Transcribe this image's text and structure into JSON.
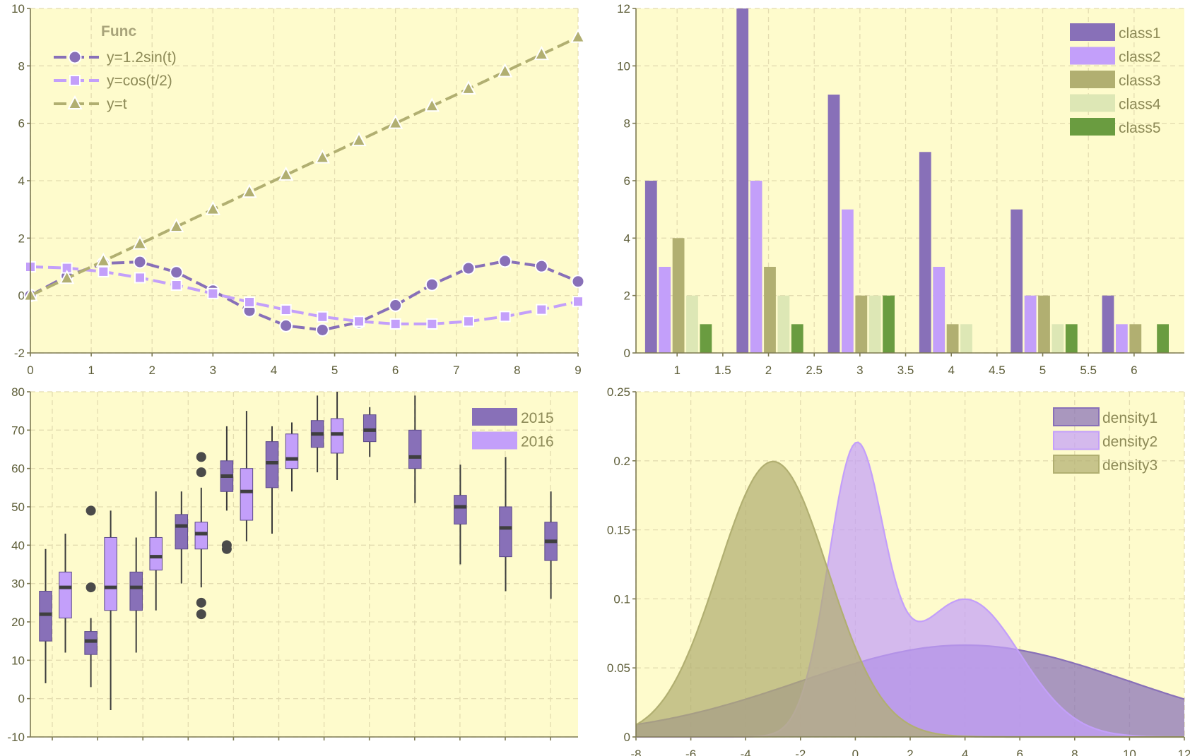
{
  "colors": {
    "background": "#fefbcc",
    "purple": "#8870b8",
    "lavender": "#c39ffa",
    "olive": "#b1af71",
    "pale_green": "#dde7b5",
    "green": "#6a9c40",
    "outlier": "#4a4a4a",
    "grid": "#e3dcb0"
  },
  "chart_data": [
    {
      "type": "line",
      "xlim": [
        0,
        9
      ],
      "ylim": [
        -2,
        10
      ],
      "xticks": [
        "0",
        "1",
        "2",
        "3",
        "4",
        "5",
        "6",
        "7",
        "8",
        "9"
      ],
      "yticks": [
        "-2",
        "0",
        "2",
        "4",
        "6",
        "8",
        "10"
      ],
      "grid": true,
      "legend": {
        "title": "Func",
        "position": "top-left"
      },
      "x": [
        0,
        0.6,
        1.2,
        1.8,
        2.4,
        3.0,
        3.6,
        4.2,
        4.8,
        5.4,
        6.0,
        6.6,
        7.2,
        7.8,
        8.4,
        9.0
      ],
      "series": [
        {
          "name": "y=1.2sin(t)",
          "marker": "circle",
          "color": "#8870b8",
          "values": [
            0,
            0.68,
            1.12,
            1.17,
            0.81,
            0.17,
            -0.53,
            -1.05,
            -1.2,
            -0.93,
            -0.34,
            0.38,
            0.95,
            1.2,
            1.02,
            0.49
          ]
        },
        {
          "name": "y=cos(t/2)",
          "marker": "square",
          "color": "#c39ffa",
          "values": [
            1,
            0.96,
            0.83,
            0.62,
            0.36,
            0.07,
            -0.23,
            -0.5,
            -0.74,
            -0.9,
            -0.99,
            -0.99,
            -0.9,
            -0.73,
            -0.49,
            -0.21
          ]
        },
        {
          "name": "y=t",
          "marker": "triangle",
          "color": "#b1af71",
          "values": [
            0,
            0.6,
            1.2,
            1.8,
            2.4,
            3.0,
            3.6,
            4.2,
            4.8,
            5.4,
            6.0,
            6.6,
            7.2,
            7.8,
            8.4,
            9.0
          ]
        }
      ]
    },
    {
      "type": "bar",
      "xlim": [
        0.55,
        6.55
      ],
      "ylim": [
        0,
        12
      ],
      "xticks": [
        "1",
        "1.5",
        "2",
        "2.5",
        "3",
        "3.5",
        "4",
        "4.5",
        "5",
        "5.5",
        "6"
      ],
      "yticks": [
        "0",
        "2",
        "4",
        "6",
        "8",
        "10",
        "12"
      ],
      "grid": true,
      "legend": {
        "position": "top-right"
      },
      "x": [
        1,
        2,
        3,
        4,
        5,
        6
      ],
      "series": [
        {
          "name": "class1",
          "color": "#8870b8",
          "values": [
            6,
            12,
            9,
            7,
            5,
            2
          ]
        },
        {
          "name": "class2",
          "color": "#c39ffa",
          "values": [
            3,
            6,
            5,
            3,
            2,
            1
          ]
        },
        {
          "name": "class3",
          "color": "#b1af71",
          "values": [
            4,
            3,
            2,
            1,
            2,
            1
          ]
        },
        {
          "name": "class4",
          "color": "#dde7b5",
          "values": [
            2,
            2,
            2,
            1,
            1,
            0
          ]
        },
        {
          "name": "class5",
          "color": "#6a9c40",
          "values": [
            1,
            1,
            2,
            0,
            1,
            1
          ]
        }
      ]
    },
    {
      "type": "box",
      "ylim": [
        -10,
        80
      ],
      "yticks": [
        "-10",
        "0",
        "10",
        "20",
        "30",
        "40",
        "50",
        "60",
        "70",
        "80"
      ],
      "grid": true,
      "legend": {
        "position": "top-right"
      },
      "series_names": [
        "2015",
        "2016"
      ],
      "series_colors": [
        "#8870b8",
        "#c39ffa"
      ],
      "boxes": [
        {
          "group": 0,
          "series": 0,
          "whislo": 4,
          "q1": 15,
          "med": 22,
          "q3": 28,
          "whishi": 39,
          "fliers": []
        },
        {
          "group": 0,
          "series": 1,
          "whislo": 12,
          "q1": 21,
          "med": 29,
          "q3": 33,
          "whishi": 43,
          "fliers": []
        },
        {
          "group": 1,
          "series": 0,
          "whislo": 3,
          "q1": 11.5,
          "med": 15,
          "q3": 17.5,
          "whishi": 21,
          "fliers": [
            29,
            49
          ]
        },
        {
          "group": 1,
          "series": 1,
          "whislo": -3,
          "q1": 23,
          "med": 29,
          "q3": 42,
          "whishi": 49,
          "fliers": []
        },
        {
          "group": 2,
          "series": 0,
          "whislo": 12,
          "q1": 23,
          "med": 29,
          "q3": 33,
          "whishi": 42,
          "fliers": []
        },
        {
          "group": 2,
          "series": 1,
          "whislo": 23,
          "q1": 33.5,
          "med": 37,
          "q3": 42,
          "whishi": 54,
          "fliers": []
        },
        {
          "group": 3,
          "series": 0,
          "whislo": 30,
          "q1": 39,
          "med": 45,
          "q3": 48,
          "whishi": 54,
          "fliers": []
        },
        {
          "group": 3,
          "series": 1,
          "whislo": 29,
          "q1": 39,
          "med": 43,
          "q3": 46,
          "whishi": 55,
          "fliers": [
            22,
            25,
            59,
            63
          ]
        },
        {
          "group": 4,
          "series": 0,
          "whislo": 49,
          "q1": 54,
          "med": 58,
          "q3": 62,
          "whishi": 71,
          "fliers": [
            39,
            40
          ]
        },
        {
          "group": 4,
          "series": 1,
          "whislo": 41,
          "q1": 46.5,
          "med": 54,
          "q3": 60,
          "whishi": 75,
          "fliers": []
        },
        {
          "group": 5,
          "series": 0,
          "whislo": 43,
          "q1": 55,
          "med": 61.5,
          "q3": 67,
          "whishi": 71,
          "fliers": []
        },
        {
          "group": 5,
          "series": 1,
          "whislo": 54,
          "q1": 60,
          "med": 62.5,
          "q3": 69,
          "whishi": 72,
          "fliers": []
        },
        {
          "group": 6,
          "series": 0,
          "whislo": 59,
          "q1": 65.5,
          "med": 69,
          "q3": 72.5,
          "whishi": 79,
          "fliers": []
        },
        {
          "group": 6,
          "series": 1,
          "whislo": 57,
          "q1": 64,
          "med": 69,
          "q3": 73,
          "whishi": 80,
          "fliers": []
        },
        {
          "group": 7,
          "series": 0,
          "whislo": 63,
          "q1": 67,
          "med": 70,
          "q3": 74,
          "whishi": 76,
          "fliers": []
        },
        {
          "group": 8,
          "series": 0,
          "whislo": 51,
          "q1": 60,
          "med": 63,
          "q3": 70,
          "whishi": 79,
          "fliers": []
        },
        {
          "group": 9,
          "series": 0,
          "whislo": 35,
          "q1": 45.5,
          "med": 50,
          "q3": 53,
          "whishi": 61,
          "fliers": []
        },
        {
          "group": 10,
          "series": 0,
          "whislo": 28,
          "q1": 37,
          "med": 44.5,
          "q3": 50,
          "whishi": 63,
          "fliers": []
        },
        {
          "group": 11,
          "series": 0,
          "whislo": 26,
          "q1": 36,
          "med": 41,
          "q3": 46,
          "whishi": 54,
          "fliers": []
        }
      ],
      "group_count": 12
    },
    {
      "type": "area",
      "xlim": [
        -8,
        12
      ],
      "ylim": [
        0,
        0.25
      ],
      "xticks": [
        "-8",
        "-6",
        "-4",
        "-2",
        "0",
        "2",
        "4",
        "6",
        "8",
        "10",
        "12"
      ],
      "yticks": [
        "0",
        "0.05",
        "0.1",
        "0.15",
        "0.2",
        "0.25"
      ],
      "grid": true,
      "legend": {
        "position": "top-right"
      },
      "series": [
        {
          "name": "density1",
          "color": "#8870b8",
          "kind": "normal",
          "components": [
            {
              "weight": 1.0,
              "mean": 4,
              "sd": 6
            }
          ]
        },
        {
          "name": "density2",
          "color": "#c39ffa",
          "kind": "mixture",
          "components": [
            {
              "weight": 0.5,
              "mean": 0,
              "sd": 1
            },
            {
              "weight": 0.5,
              "mean": 4,
              "sd": 2
            }
          ]
        },
        {
          "name": "density3",
          "color": "#b1af71",
          "kind": "normal",
          "components": [
            {
              "weight": 1.0,
              "mean": -3,
              "sd": 2
            }
          ]
        }
      ]
    }
  ]
}
